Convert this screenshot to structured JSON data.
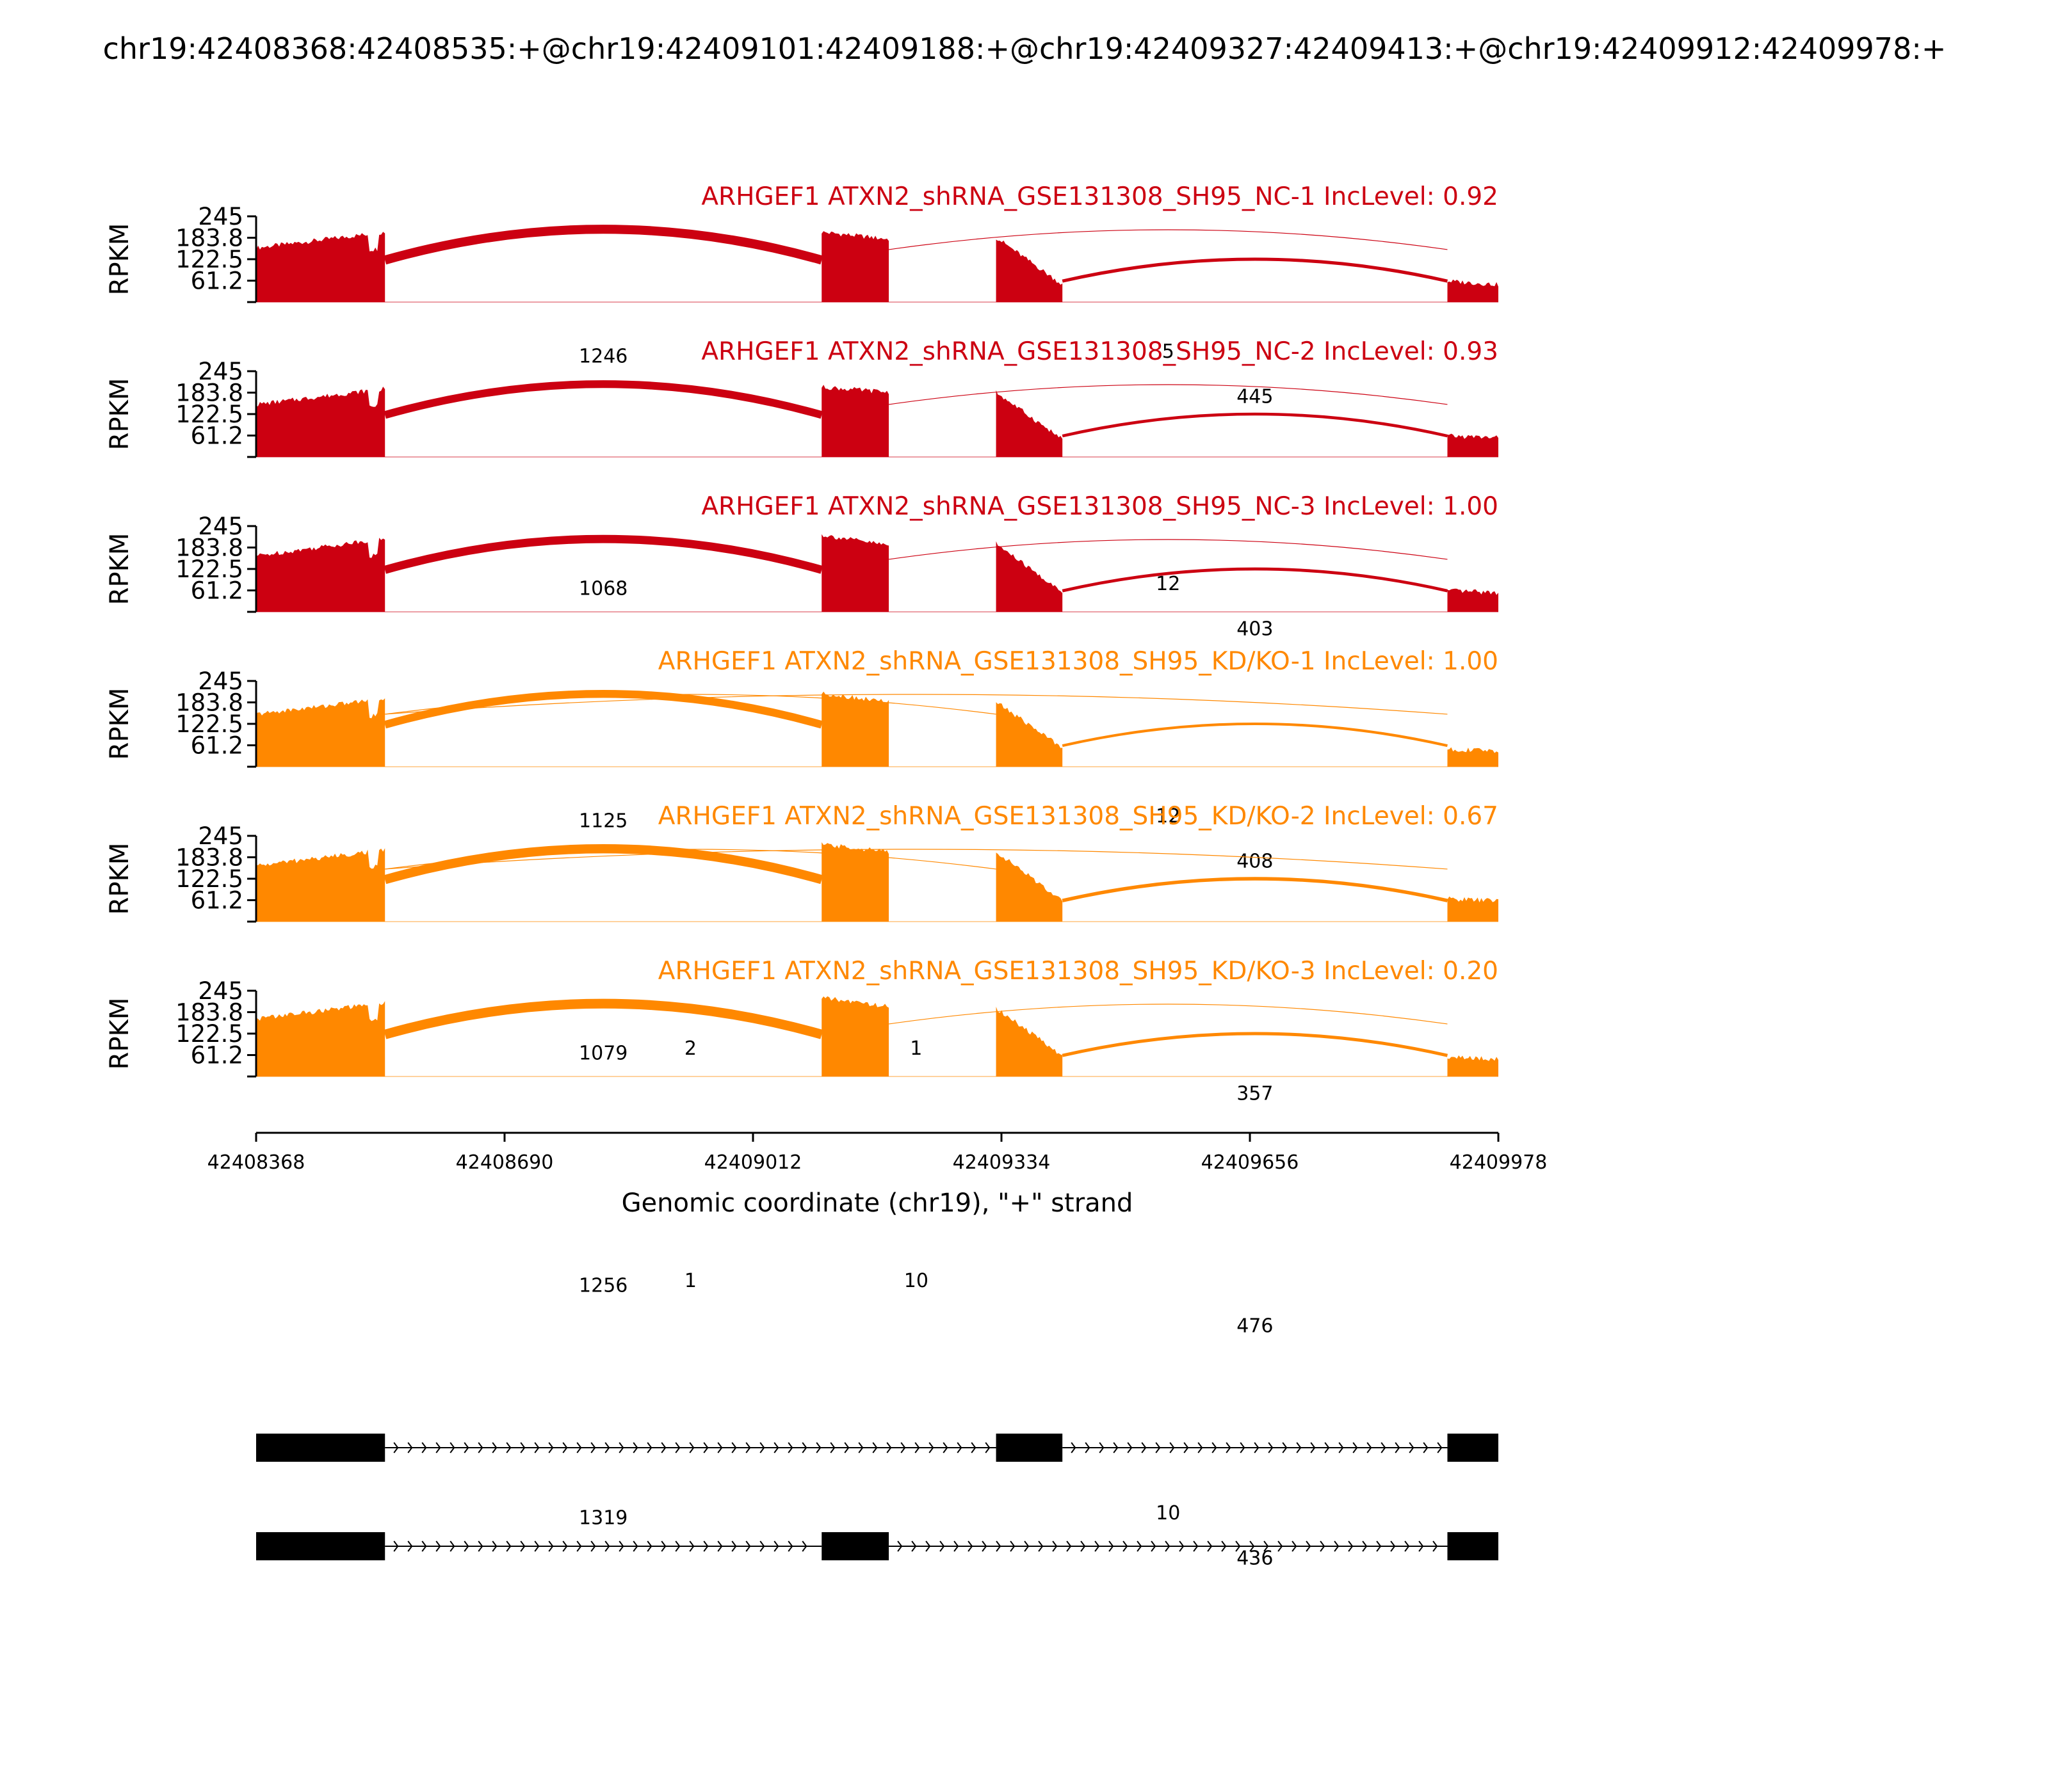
{
  "chart_data": {
    "type": "area",
    "title": "chr19:42408368:42408535:+@chr19:42409101:42409188:+@chr19:42409327:42409413:+@chr19:42409912:42409978:+",
    "xlabel": "Genomic coordinate (chr19), \"+\" strand",
    "ylabel": "RPKM",
    "xlim": [
      42408368,
      42409978
    ],
    "ylim": [
      0,
      245
    ],
    "x_ticks": [
      "42408368",
      "42408690",
      "42409012",
      "42409334",
      "42409656",
      "42409978"
    ],
    "y_ticks": [
      "245",
      "183.8",
      "122.5",
      "61.2"
    ],
    "exon_regions": [
      {
        "start": 42408368,
        "end": 42408535
      },
      {
        "start": 42409101,
        "end": 42409188
      },
      {
        "start": 42409327,
        "end": 42409413
      },
      {
        "start": 42409912,
        "end": 42409978
      }
    ],
    "colors": {
      "NC": "#cc0011",
      "KD": "#ff8800"
    },
    "series": [
      {
        "name": "ARHGEF1 ATXN2_shRNA_GSE131308_SH95_NC-1 IncLevel: 0.92",
        "group": "NC",
        "coverage": {
          "exon1": [
            155,
            200
          ],
          "exon2": [
            200,
            180
          ],
          "exon3": [
            185,
            50
          ],
          "exon4": [
            60,
            50
          ]
        },
        "junctions": [
          {
            "from": 42408535,
            "to": 42409101,
            "count": "1246"
          },
          {
            "from": 42409188,
            "to": 42409912,
            "count": "5"
          },
          {
            "from": 42409413,
            "to": 42409912,
            "count": "445"
          }
        ]
      },
      {
        "name": "ARHGEF1 ATXN2_shRNA_GSE131308_SH95_NC-2 IncLevel: 0.93",
        "group": "NC",
        "coverage": {
          "exon1": [
            150,
            195
          ],
          "exon2": [
            200,
            185
          ],
          "exon3": [
            185,
            50
          ],
          "exon4": [
            60,
            55
          ]
        },
        "junctions": [
          {
            "from": 42408535,
            "to": 42409101,
            "count": "1068"
          },
          {
            "from": 42409188,
            "to": 42409912,
            "count": "12"
          },
          {
            "from": 42409413,
            "to": 42409912,
            "count": "403"
          }
        ]
      },
      {
        "name": "ARHGEF1 ATXN2_shRNA_GSE131308_SH95_NC-3 IncLevel: 1.00",
        "group": "NC",
        "coverage": {
          "exon1": [
            160,
            210
          ],
          "exon2": [
            220,
            190
          ],
          "exon3": [
            195,
            55
          ],
          "exon4": [
            60,
            55
          ]
        },
        "junctions": [
          {
            "from": 42408535,
            "to": 42409101,
            "count": "1125"
          },
          {
            "from": 42409188,
            "to": 42409912,
            "count": "12"
          },
          {
            "from": 42409413,
            "to": 42409912,
            "count": "408"
          }
        ]
      },
      {
        "name": "ARHGEF1 ATXN2_shRNA_GSE131308_SH95_KD/KO-1 IncLevel: 1.00",
        "group": "KD",
        "coverage": {
          "exon1": [
            150,
            195
          ],
          "exon2": [
            210,
            185
          ],
          "exon3": [
            185,
            55
          ],
          "exon4": [
            50,
            45
          ]
        },
        "junctions": [
          {
            "from": 42408535,
            "to": 42409101,
            "count": "1079"
          },
          {
            "from": 42408535,
            "to": 42409327,
            "count": "2"
          },
          {
            "from": 42408535,
            "to": 42409912,
            "count": "1"
          },
          {
            "from": 42409413,
            "to": 42409912,
            "count": "357"
          }
        ]
      },
      {
        "name": "ARHGEF1 ATXN2_shRNA_GSE131308_SH95_KD/KO-2 IncLevel: 0.67",
        "group": "KD",
        "coverage": {
          "exon1": [
            160,
            205
          ],
          "exon2": [
            220,
            200
          ],
          "exon3": [
            200,
            60
          ],
          "exon4": [
            65,
            60
          ]
        },
        "junctions": [
          {
            "from": 42408535,
            "to": 42409101,
            "count": "1256"
          },
          {
            "from": 42408535,
            "to": 42409327,
            "count": "1"
          },
          {
            "from": 42408535,
            "to": 42409912,
            "count": "10"
          },
          {
            "from": 42409413,
            "to": 42409912,
            "count": "476"
          }
        ]
      },
      {
        "name": "ARHGEF1 ATXN2_shRNA_GSE131308_SH95_KD/KO-3 IncLevel: 0.20",
        "group": "KD",
        "coverage": {
          "exon1": [
            165,
            210
          ],
          "exon2": [
            225,
            200
          ],
          "exon3": [
            195,
            60
          ],
          "exon4": [
            55,
            50
          ]
        },
        "junctions": [
          {
            "from": 42408535,
            "to": 42409101,
            "count": "1319"
          },
          {
            "from": 42409188,
            "to": 42409912,
            "count": "10"
          },
          {
            "from": 42409413,
            "to": 42409912,
            "count": "436"
          }
        ]
      }
    ],
    "isoforms": [
      {
        "exons": [
          [
            42408368,
            42408535
          ],
          [
            42409327,
            42409413
          ],
          [
            42409912,
            42409978
          ]
        ]
      },
      {
        "exons": [
          [
            42408368,
            42408535
          ],
          [
            42409101,
            42409188
          ],
          [
            42409912,
            42409978
          ]
        ]
      }
    ]
  }
}
